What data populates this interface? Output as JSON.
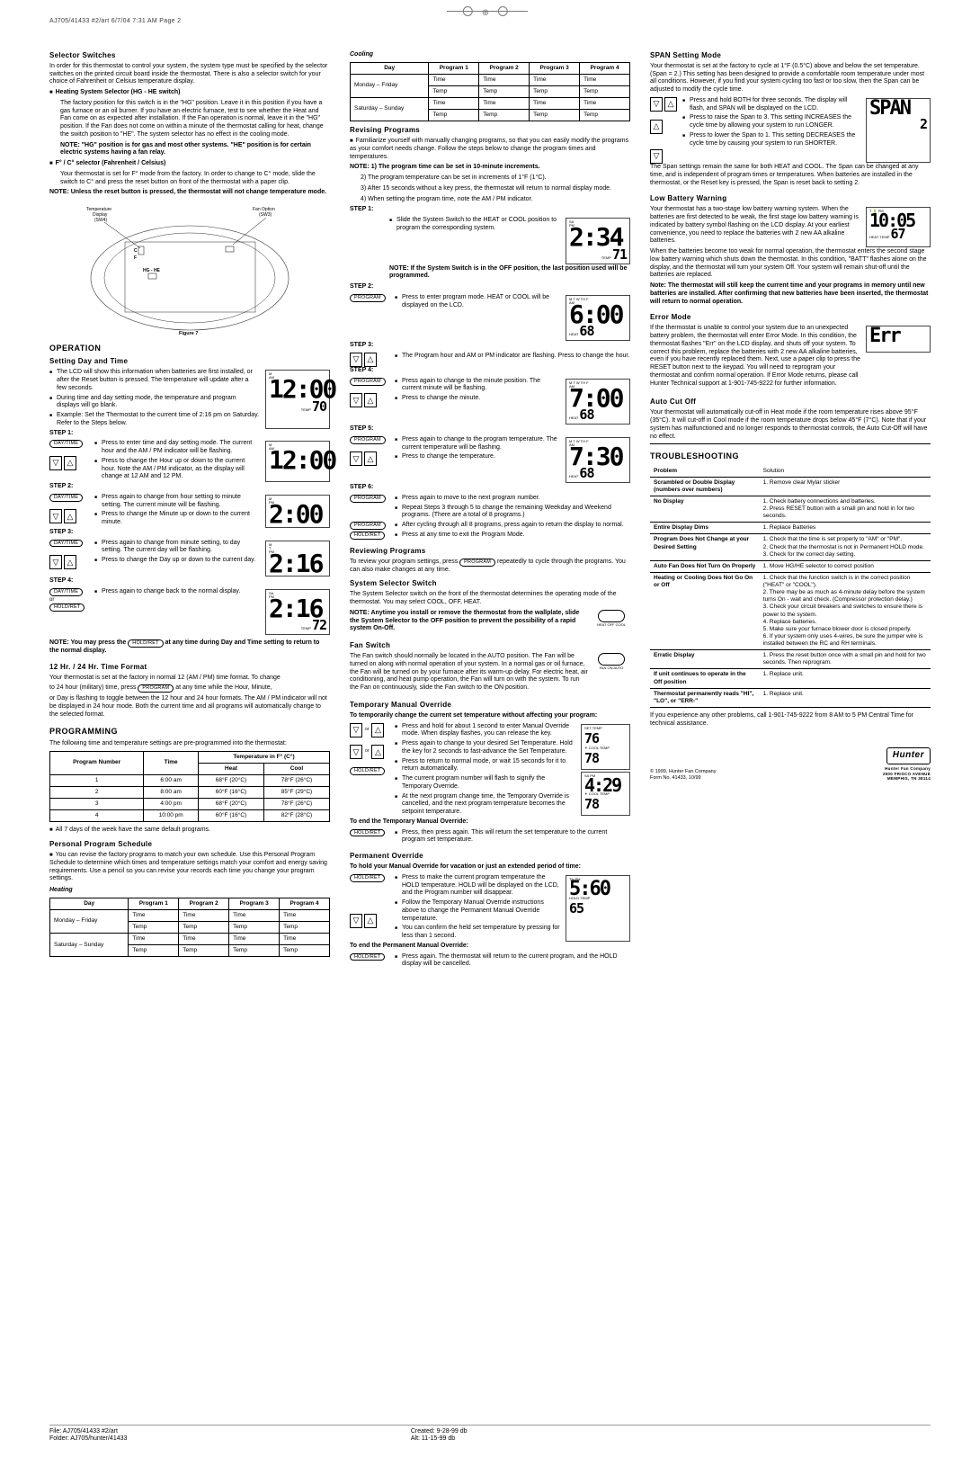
{
  "header_line": "AJ705/41433 #2/art  6/7/04  7:31 AM  Page 2",
  "col1": {
    "selector_switches": {
      "title": "Selector Switches",
      "p1": "In order for this thermostat to control your system, the system type must be specified by the selector switches on the printed circuit board inside the thermostat. There is also a selector switch for your choice of Fahrenheit or Celsius temperature display.",
      "hg_he_title": "Heating System Selector (HG - HE switch)",
      "hg_he_body": "The factory position for this switch is in the \"HG\" position. Leave it in this position if you have a gas furnace or an oil burner. If you have an electric furnace, test to see whether the Heat and Fan come on as expected after installation. If the Fan operation is normal, leave it in the \"HG\" position. If the Fan does not come on within a minute of the thermostat calling for heat, change the switch position to \"HE\". The system selector has no effect in the cooling mode.",
      "hg_he_note": "NOTE: \"HG\" position is for gas and most other systems. \"HE\" position is for certain electric systems having a fan relay.",
      "fc_title": "F° / C° selector (Fahrenheit / Celsius)",
      "fc_body": "Your thermostat is set for F° mode from the factory. In order to change to C° mode, slide the switch to C° and press the reset button on front of the thermostat with a paper clip.",
      "reset_note": "NOTE: Unless the reset button is pressed, the thermostat will not change temperature mode.",
      "fig_labels": {
        "temp_display": "Temperature Display (SW4)",
        "fan_option": "Fan Option (SW3)",
        "c": "C",
        "f": "F",
        "hghe": "HG - HE",
        "figure": "Figure 7"
      }
    },
    "operation": {
      "title": "OPERATION",
      "setting": "Setting Day and Time",
      "b1": "The LCD will show this information when batteries are first installed, or after the Reset button is pressed. The temperature will update after a few seconds.",
      "b2": "During time and day setting mode, the temperature and program displays will go blank.",
      "b3": "Example: Set the Thermostat to the current time of 2:16 pm on Saturday. Refer to the Steps below.",
      "step1": "STEP 1:",
      "s1a": "Press to enter time and day setting mode. The current hour and the AM / PM indicator will be flashing.",
      "s1b": "Press to change the Hour up or down to the current hour. Note the AM / PM indicator, as the display will change at 12 AM and 12 PM.",
      "step2": "STEP 2:",
      "s2a": "Press again to change from hour setting to minute setting. The current minute will be flashing.",
      "s2b": "Press to change the Minute up or down to the current minute.",
      "step3": "STEP 3:",
      "s3a": "Press again to change from minute setting, to day setting. The current day will be flashing.",
      "s3b": "Press to change the Day up or down to the current day.",
      "step4": "STEP 4:",
      "s4a": "Press again to change back to the normal display.",
      "or": "or",
      "daytime": "DAY/TIME",
      "holdret": "HOLD/RET",
      "note_bottom": "NOTE: You may press the             at any time during Day and Time setting to return to the normal display.",
      "lcd1": "12:00",
      "lcd1_t": "70",
      "lcd2": "12:00",
      "lcd3": "2:00",
      "lcd4": "2:16",
      "lcd5": "2:16",
      "lcd5_t": "72"
    },
    "time_format": {
      "title": "12 Hr. / 24 Hr. Time Format",
      "p1": "Your thermostat is set at the factory in normal 12 (AM / PM) time format. To change",
      "p2": "to 24 hour (military) time, press               at any time while the Hour, Minute,",
      "p3": "or Day is flashing to toggle between the 12 hour and 24 hour formats. The AM / PM indicator will not be displayed in 24 hour mode. Both the current time and all programs will automatically change to the selected format.",
      "program": "PROGRAM"
    },
    "programming": {
      "title": "PROGRAMMING",
      "p1": "The following time and temperature settings are pre-programmed into the thermostat:",
      "table_headers": [
        "Program Number",
        "Time",
        "Heat",
        "Cool"
      ],
      "table_temp_header": "Temperature in F° (C°)",
      "rows": [
        [
          "1",
          "6:00 am",
          "68°F (20°C)",
          "78°F (26°C)"
        ],
        [
          "2",
          "8:00 am",
          "60°F (16°C)",
          "85°F (29°C)"
        ],
        [
          "3",
          "4:00 pm",
          "68°F (20°C)",
          "78°F (26°C)"
        ],
        [
          "4",
          "10:00 pm",
          "60°F (16°C)",
          "82°F (28°C)"
        ]
      ],
      "foot": "All 7 days of the week have the same default programs.",
      "pps_title": "Personal Program Schedule",
      "pps_body": "You can revise the factory programs to match your own schedule. Use this Personal Program Schedule to determine which times and temperature settings match your comfort and energy saving requirements. Use a pencil so you can revise your records each time you change your program settings.",
      "heating": "Heating",
      "sched_headers": [
        "Day",
        "Program 1",
        "Program 2",
        "Program 3",
        "Program 4"
      ],
      "sched_rows": [
        [
          "Monday – Friday",
          "Time",
          "Time",
          "Time",
          "Time"
        ],
        [
          "",
          "Temp",
          "Temp",
          "Temp",
          "Temp"
        ],
        [
          "Saturday – Sunday",
          "Time",
          "Time",
          "Time",
          "Time"
        ],
        [
          "",
          "Temp",
          "Temp",
          "Temp",
          "Temp"
        ]
      ]
    }
  },
  "col2": {
    "cooling": "Cooling",
    "revising": {
      "title": "Revising Programs",
      "p1": "Familiarize yourself with manually changing programs, so that you can easily modify the programs as your comfort needs change. Follow the steps below to change the program times and temperatures.",
      "note": "NOTE: 1) The program time can be set in 10-minute increments.",
      "n2": "2) The program temperature can be set in increments of 1°F (1°C).",
      "n3": "3) After 15 seconds without a key press, the thermostat will return to normal display mode.",
      "n4": "4) When setting the program time, note the AM / PM indicator.",
      "step1": "STEP 1:",
      "s1": "Slide the System Switch to the HEAT or COOL position to program the corresponding system.",
      "s1note": "NOTE: If the System Switch is in the OFF position, the last position used will be programmed.",
      "step2": "STEP 2:",
      "s2": "Press to enter program mode. HEAT or COOL will be displayed on the LCD.",
      "step3": "STEP 3:",
      "s3": "The Program hour and AM or PM indicator are flashing. Press to change the hour.",
      "step4": "STEP 4:",
      "s4a": "Press again to change to the minute position. The current minute will be flashing.",
      "s4b": "Press to change the minute.",
      "step5": "STEP 5:",
      "s5a": "Press again to change to the program temperature. The current temperature will be flashing.",
      "s5b": "Press to change the temperature.",
      "step6": "STEP 6:",
      "s6a": "Press again to move to the next program number.",
      "s6b": "Repeat Steps 3 through 5 to change the remaining Weekday and Weekend programs. (There are a total of 8 programs.)",
      "s6c": "After cycling through all 8 programs, press again to return the display to normal.",
      "s6d": "Press at any time to exit the Program Mode.",
      "program": "PROGRAM",
      "holdret": "HOLD/RET",
      "lcd_t1": "2:34",
      "lcd_t1_sub": "71",
      "lcd_t2": "6:00",
      "lcd_t2_sub": "68",
      "lcd_t3": "7:00",
      "lcd_t3_sub": "68",
      "lcd_t4": "7:30",
      "lcd_t4_sub": "68"
    },
    "reviewing": {
      "title": "Reviewing Programs",
      "p": "To review your program settings, press               repeatedly to cycle through the programs. You can also make changes at any time.",
      "program": "PROGRAM"
    },
    "sys_sel": {
      "title": "System Selector Switch",
      "p": "The System Selector switch on the front of the thermostat determines the operating mode of the thermostat. You may select COOL, OFF, HEAT.",
      "note": "NOTE: Anytime you install or remove the thermostat from the wallplate, slide the System Selector to the OFF position to prevent the possibility of a rapid system On-Off.",
      "labels": "HEAT  OFF  COOL"
    },
    "fan": {
      "title": "Fan Switch",
      "p": "The Fan switch should normally be located in the AUTO position. The Fan will be turned on along with normal operation of your system. In a normal gas or oil furnace, the Fan will be turned on by your furnace after its warm-up delay. For electric heat, air conditioning, and heat pump operation, the Fan will turn on with the system. To run the Fan on continuously, slide the Fan switch to the ON position.",
      "labels": "FAN   ON   AUTO"
    },
    "tmo": {
      "title": "Temporary Manual Override",
      "sub": "To temporarily change the current set temperature without affecting your program:",
      "b1": "Press and hold for about 1 second to enter Manual Override mode. When display flashes, you can release the key.",
      "b2": "Press again to change to your desired Set Temperature. Hold the key for 2 seconds to fast-advance the Set Temperature.",
      "b3": "Press to return to normal mode, or wait 15 seconds for it to return automatically.",
      "b4": "The current program number will flash to signify the Temporary Override.",
      "b5": "At the next program change time, the Temporary Override is cancelled, and the next program temperature becomes the setpoint temperature.",
      "end_title": "To end the Temporary Manual Override:",
      "end": "Press, then press again. This will return the set temperature to the current program set temperature.",
      "l1": "76",
      "l2": "78",
      "l3": "4:29",
      "l4": "78",
      "holdret": "HOLD/RET"
    },
    "perm": {
      "title": "Permanent Override",
      "sub": "To hold your Manual Override for vacation or just an extended period of time:",
      "b1": "Press to make the current program temperature the HOLD temperature. HOLD will be displayed on the LCD, and the Program number will disappear.",
      "b2": "Follow the Temporary Manual Override instructions above to change the Permanent Manual Override temperature.",
      "b3": "You can confirm the held set temperature by pressing for less than 1 second.",
      "end_title": "To end the Permanent Manual Override:",
      "end": "Press again. The thermostat will return to the current program, and the HOLD display will be cancelled.",
      "l1": "5:60",
      "l2": "65",
      "holdret": "HOLD/RET"
    }
  },
  "col3": {
    "span": {
      "title": "SPAN Setting Mode",
      "p1": "Your thermostat is set at the factory to cycle at 1°F (0.5°C) above and below the set temperature. (Span = 2.) This setting has been designed to provide a comfortable room temperature under most all conditions. However, if you find your system cycling too fast or too slow, then the Span can be adjusted to modify the cycle time.",
      "b1": "Press and hold BOTH for three seconds. The display will flash, and SPAN will be displayed on the LCD.",
      "b2": "Press to raise the Span to 3. This setting INCREASES the cycle time by allowing your system to run LONGER.",
      "b3": "Press to lower the Span to 1. This setting DECREASES the cycle time by causing your system to run SHORTER.",
      "p2": "The Span settings remain the same for both HEAT and COOL. The Span can be changed at any time, and is independent of program times or temperatures. When batteries are installed in the thermostat, or the Reset key is pressed, the Span is reset back to setting 2.",
      "lcd": "SPAN",
      "lcd2": "2"
    },
    "low_bat": {
      "title": "Low Battery Warning",
      "p1": "Your thermostat has a two-stage low battery warning system. When the batteries are first detected to be weak, the first stage low battery warning is indicated by battery symbol flashing on the LCD display. At your earliest convenience, you need to replace the batteries with 2 new AA alkaline batteries.",
      "p2": "When the batteries become too weak for normal operation, the thermostat enters the second stage low battery warning which shuts down the thermostat. In this condition, \"BATT\" flashes alone on the display, and the thermostat will turn your system Off. Your system will remain shut-off until the batteries are replaced.",
      "note": "Note: The thermostat will still keep the current time and your programs in memory until new batteries are installed. After confirming that new batteries have been inserted, the thermostat will return to normal operation.",
      "l1": "10:05",
      "l2": "67"
    },
    "err": {
      "title": "Error Mode",
      "p": "If the thermostat is unable to control your system due to an unexpected battery problem, the thermostat will enter Error Mode. In this condition, the thermostat flashes \"Err\" on the LCD display, and shuts off your system. To correct this problem, replace the batteries with 2 new AA alkaline batteries, even if you have recently replaced them. Next, use a paper clip to press the RESET button next to the keypad. You will need to reprogram your thermostat and confirm normal operation. If Error Mode returns, please call Hunter Technical support at 1-901-745-9222 for further information.",
      "lcd": "Err"
    },
    "auto": {
      "title": "Auto Cut Off",
      "p": "Your thermostat will automatically cut-off in Heat mode if the room temperature rises above 95°F (35°C). It will cut-off in Cool mode if the room temperature drops below 45°F (7°C). Note that if your system has malfunctioned and no longer responds to thermostat controls, the Auto Cut-Off will have no effect."
    },
    "trouble": {
      "title": "TROUBLESHOOTING",
      "h1": "Problem",
      "h2": "Solution",
      "rows": [
        [
          "Scrambled or Double Display (numbers over numbers)",
          "1. Remove clear Mylar sticker"
        ],
        [
          "No Display",
          "1. Check battery connections and batteries.\n2. Press RESET button with a small pin and hold in for two seconds."
        ],
        [
          "Entire Display Dims",
          "1. Replace Batteries"
        ],
        [
          "Program Does Not Change at your Desired Setting",
          "1. Check that the time is set properly to \"AM\" or \"PM\".\n2. Check that the thermostat is not in Permanent HOLD mode.\n3. Check for the correct day setting."
        ],
        [
          "Auto Fan Does Not Turn On Properly",
          "1. Move HG/HE selector to correct position"
        ],
        [
          "Heating or Cooling Does Not Go On or Off",
          "1. Check that the function switch is in the correct position (\"HEAT\" or \"COOL\").\n2. There may be as much as 4-minute delay before the system turns On - wait and check. (Compressor protection delay.)\n3. Check your circuit breakers and switches to ensure there is power to the system.\n4. Replace batteries.\n5. Make sure your furnace blower door is closed properly.\n6. If your system only uses 4-wires, be sure the jumper wire is installed between the RC and RH terminals."
        ],
        [
          "Erratic Display",
          "1. Press the reset button once with a small pin and hold for two seconds. Then reprogram."
        ],
        [
          "If unit continues to operate in the Off position",
          "1. Replace unit."
        ],
        [
          "Thermostat permanently reads \"HI\", \"LO\", or \"ERR-\"",
          "1. Replace unit."
        ]
      ],
      "foot": "If you experience any other problems, call 1-901-745-9222 from 8 AM to 5 PM Central Time for technical assistance."
    },
    "copyright": "© 1999, Hunter Fan Company\nForm No. 41433, 10/99",
    "hunter": "Hunter",
    "hunter_addr": "Hunter Fan Company\n2500 FRISCO AVENUE\nMEMPHIS, TN 38114"
  },
  "footer": {
    "file": "File: AJ705/41433 #2/art",
    "folder": "Folder: AJ705/hunter/41433",
    "created": "Created: 9-28-99 db",
    "alt": "Alt: 11-15-99 db"
  }
}
